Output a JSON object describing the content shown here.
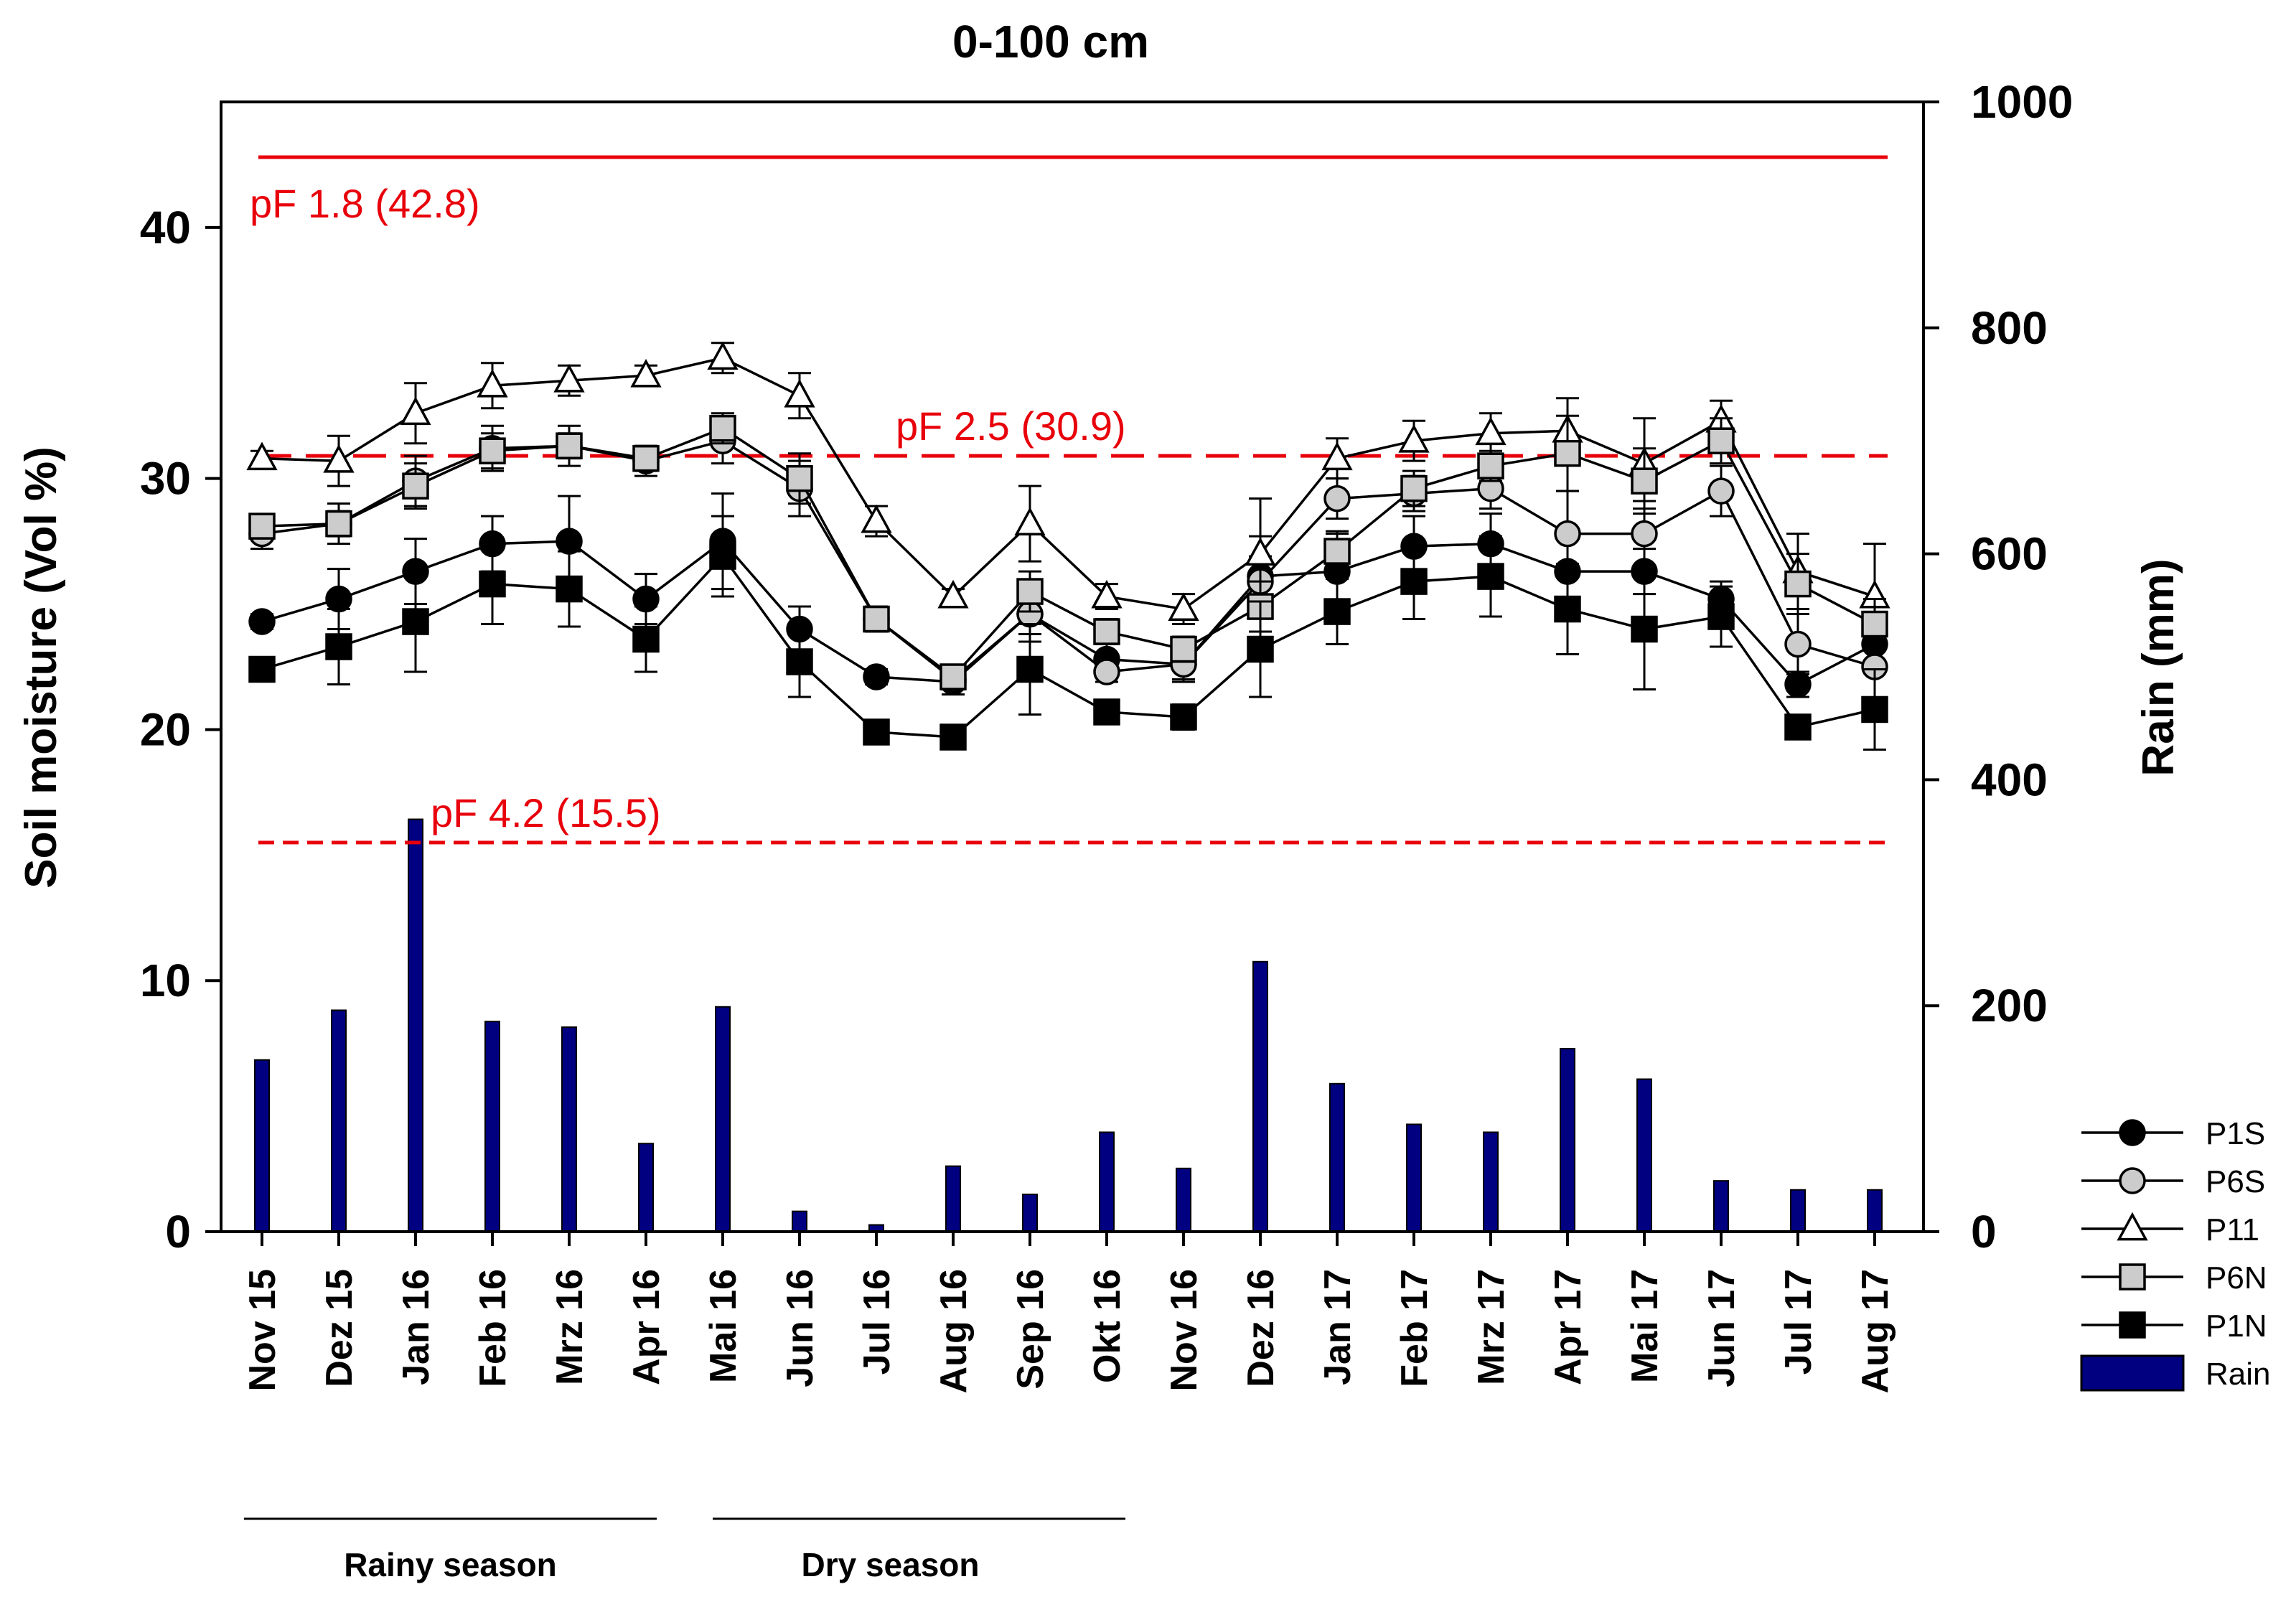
{
  "chart_data": {
    "type": "line+bar",
    "title": "0-100 cm",
    "ylabel_left": "Soil moisture (Vol %)",
    "ylabel_right": "Rain (mm)",
    "ylim_left": [
      0,
      45
    ],
    "ylim_right": [
      0,
      1000
    ],
    "yticks_left": [
      0,
      10,
      20,
      30,
      40
    ],
    "yticks_right": [
      0,
      200,
      400,
      600,
      800,
      1000
    ],
    "categories": [
      "Nov 15",
      "Dez 15",
      "Jan 16",
      "Feb 16",
      "Mrz 16",
      "Apr 16",
      "Mai 16",
      "Jun 16",
      "Jul 16",
      "Aug 16",
      "Sep 16",
      "Okt 16",
      "Nov 16",
      "Dez 16",
      "Jan 17",
      "Feb 17",
      "Mrz 17",
      "Apr 17",
      "Mai 17",
      "Jun 17",
      "Jul 17",
      "Aug 17"
    ],
    "series": [
      {
        "name": "P1S",
        "marker": "circle",
        "fill": "#000000",
        "values": [
          24.3,
          25.2,
          26.3,
          27.4,
          27.5,
          25.2,
          27.5,
          24.0,
          22.1,
          21.9,
          24.6,
          22.8,
          22.6,
          26.1,
          26.3,
          27.3,
          27.4,
          26.3,
          26.3,
          25.2,
          21.8,
          23.4
        ],
        "errors": [
          0.3,
          1.2,
          1.3,
          1.1,
          1.8,
          1.0,
          1.9,
          0.9,
          0.3,
          0.5,
          1.1,
          0.6,
          0.7,
          1.6,
          1.5,
          1.2,
          1.2,
          1.5,
          0.9,
          0.7,
          0.5,
          1.1
        ]
      },
      {
        "name": "P6S",
        "marker": "circle",
        "fill": "#cccccc",
        "values": [
          27.8,
          28.2,
          29.9,
          31.2,
          31.3,
          30.7,
          31.5,
          29.6,
          24.4,
          22.0,
          24.6,
          22.3,
          22.6,
          25.9,
          29.2,
          29.4,
          29.6,
          27.8,
          27.8,
          29.5,
          23.4,
          22.5
        ],
        "errors": [
          0.6,
          0.8,
          1.0,
          0.9,
          0.8,
          0.6,
          0.9,
          1.1,
          0.5,
          0.4,
          0.8,
          0.4,
          0.6,
          1.0,
          0.8,
          0.7,
          0.8,
          1.7,
          1.3,
          1.0,
          1.2,
          1.3
        ]
      },
      {
        "name": "P11",
        "marker": "triangle",
        "fill": "#ffffff",
        "values": [
          30.8,
          30.7,
          32.6,
          33.7,
          33.9,
          34.1,
          34.8,
          33.3,
          28.3,
          25.3,
          28.2,
          25.3,
          24.8,
          27.0,
          30.8,
          31.5,
          31.8,
          31.9,
          30.6,
          32.3,
          26.3,
          25.3
        ],
        "errors": [
          0.3,
          1.0,
          1.2,
          0.9,
          0.6,
          0.4,
          0.6,
          0.9,
          0.6,
          0.3,
          1.5,
          0.5,
          0.6,
          2.2,
          0.8,
          0.8,
          0.8,
          1.3,
          1.8,
          0.8,
          1.5,
          2.1
        ]
      },
      {
        "name": "P6N",
        "marker": "square",
        "fill": "#cccccc",
        "values": [
          28.1,
          28.2,
          29.7,
          31.1,
          31.3,
          30.8,
          32.0,
          30.0,
          24.4,
          22.1,
          25.5,
          23.9,
          23.2,
          24.9,
          27.1,
          29.6,
          30.5,
          31.0,
          29.9,
          31.5,
          25.8,
          24.2
        ],
        "errors": [
          0.4,
          0.5,
          0.9,
          0.7,
          0.5,
          0.5,
          0.6,
          1.0,
          0.4,
          0.3,
          0.8,
          0.5,
          0.5,
          1.0,
          0.8,
          0.7,
          0.6,
          1.5,
          1.3,
          0.9,
          1.2,
          1.0
        ]
      },
      {
        "name": "P1N",
        "marker": "square",
        "fill": "#000000",
        "values": [
          22.4,
          23.3,
          24.3,
          25.8,
          25.6,
          23.6,
          26.9,
          22.7,
          19.9,
          19.7,
          22.4,
          20.7,
          20.5,
          23.2,
          24.7,
          25.9,
          26.1,
          24.8,
          24.0,
          24.5,
          20.1,
          20.8
        ],
        "errors": [
          0.3,
          1.5,
          2.0,
          1.6,
          1.5,
          1.3,
          1.6,
          1.4,
          0.3,
          0.3,
          1.8,
          0.4,
          0.5,
          1.9,
          1.3,
          1.5,
          1.6,
          1.8,
          2.4,
          1.2,
          0.4,
          1.6
        ]
      }
    ],
    "rain": {
      "name": "Rain",
      "color": "#000080",
      "values": [
        152,
        196,
        365,
        186,
        181,
        78,
        199,
        18,
        6,
        58,
        33,
        88,
        56,
        239,
        131,
        95,
        88,
        162,
        135,
        45,
        37,
        37
      ]
    },
    "reference_lines": [
      {
        "label": "pF 1.8 (42.8)",
        "value": 42.8,
        "style": "solid",
        "color": "#e8000b"
      },
      {
        "label": "pF 2.5 (30.9)",
        "value": 30.9,
        "style": "dashed",
        "color": "#e8000b"
      },
      {
        "label": "pF 4.2 (15.5)",
        "value": 15.5,
        "style": "dashed",
        "color": "#e8000b"
      }
    ],
    "seasons": [
      {
        "label": "Rainy season",
        "from": "Nov 15",
        "to": "Apr 16"
      },
      {
        "label": "Dry season",
        "from": "Mai 16",
        "to": "Okt 16"
      }
    ],
    "legend": [
      "P1S",
      "P6S",
      "P11",
      "P6N",
      "P1N",
      "Rain"
    ],
    "legend_position": "bottom-right"
  }
}
